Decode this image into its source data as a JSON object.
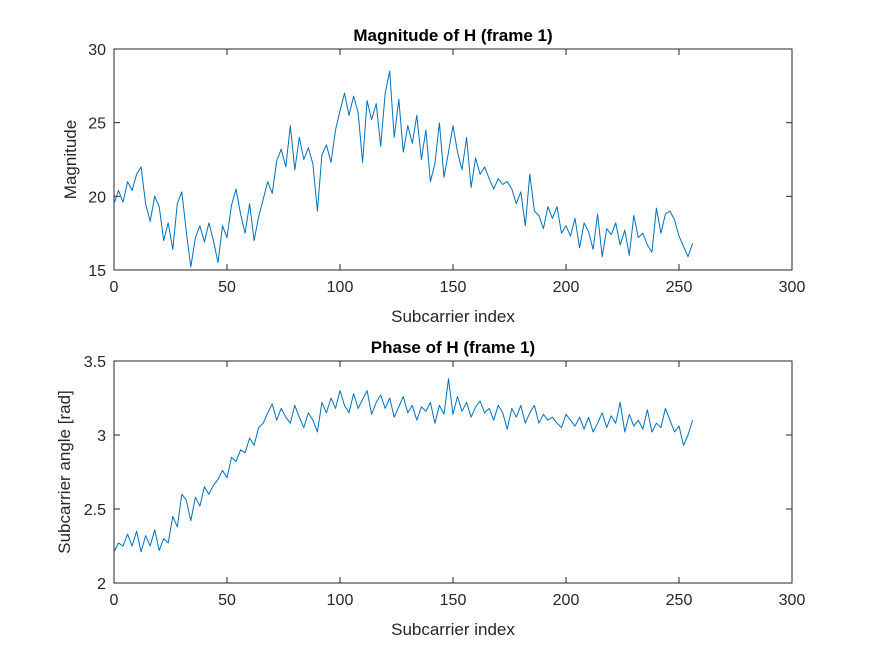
{
  "chart_data": [
    {
      "type": "line",
      "title": "Magnitude of H (frame 1)",
      "xlabel": "Subcarrier index",
      "ylabel": "Magnitude",
      "xlim": [
        0,
        300
      ],
      "ylim": [
        15,
        30
      ],
      "xticks": [
        0,
        50,
        100,
        150,
        200,
        250,
        300
      ],
      "yticks": [
        15,
        20,
        25,
        30
      ],
      "grid": false,
      "legend": "none",
      "color": "#0072BD",
      "series": [
        {
          "x": [
            0,
            2,
            4,
            6,
            8,
            10,
            12,
            14,
            16,
            18,
            20,
            22,
            24,
            26,
            28,
            30,
            32,
            34,
            36,
            38,
            40,
            42,
            44,
            46,
            48,
            50,
            52,
            54,
            56,
            58,
            60,
            62,
            64,
            66,
            68,
            70,
            72,
            74,
            76,
            78,
            80,
            82,
            84,
            86,
            88,
            90,
            92,
            94,
            96,
            98,
            100,
            102,
            104,
            106,
            108,
            110,
            112,
            114,
            116,
            118,
            120,
            122,
            124,
            126,
            128,
            130,
            132,
            134,
            136,
            138,
            140,
            142,
            144,
            146,
            148,
            150,
            152,
            154,
            156,
            158,
            160,
            162,
            164,
            166,
            168,
            170,
            172,
            174,
            176,
            178,
            180,
            182,
            184,
            186,
            188,
            190,
            192,
            194,
            196,
            198,
            200,
            202,
            204,
            206,
            208,
            210,
            212,
            214,
            216,
            218,
            220,
            222,
            224,
            226,
            228,
            230,
            232,
            234,
            236,
            238,
            240,
            242,
            244,
            246,
            248,
            250,
            252,
            254,
            256
          ],
          "values": [
            19.5,
            20.4,
            19.6,
            21.0,
            20.4,
            21.5,
            22.0,
            19.5,
            18.3,
            20.0,
            19.3,
            17.0,
            18.2,
            16.4,
            19.5,
            20.3,
            17.6,
            15.2,
            17.2,
            18.0,
            16.9,
            18.2,
            17.0,
            15.5,
            18.0,
            17.2,
            19.4,
            20.5,
            18.8,
            17.5,
            19.5,
            17.0,
            18.6,
            19.8,
            21.0,
            20.2,
            22.4,
            23.2,
            22.0,
            24.8,
            21.8,
            24.0,
            22.5,
            23.3,
            22.2,
            19.0,
            22.8,
            23.5,
            22.3,
            24.5,
            25.8,
            27.0,
            25.5,
            26.8,
            25.7,
            22.3,
            26.5,
            25.2,
            26.3,
            23.4,
            27.0,
            28.5,
            24.0,
            26.6,
            23.0,
            24.8,
            23.6,
            25.5,
            22.5,
            24.5,
            21.0,
            22.2,
            25.0,
            21.3,
            23.0,
            24.8,
            23.0,
            21.8,
            24.0,
            20.6,
            22.6,
            21.5,
            22.0,
            21.2,
            20.5,
            21.2,
            20.8,
            21.0,
            20.5,
            19.5,
            20.3,
            18.0,
            21.5,
            19.0,
            18.7,
            17.8,
            19.3,
            18.5,
            19.3,
            17.5,
            18.0,
            17.3,
            18.5,
            16.5,
            18.2,
            17.6,
            16.4,
            18.8,
            15.9,
            17.8,
            17.4,
            18.2,
            16.7,
            17.7,
            16.0,
            18.7,
            17.2,
            17.5,
            16.7,
            16.2,
            19.2,
            17.5,
            18.8,
            19.0,
            18.4,
            17.3,
            16.6,
            15.9,
            16.8
          ]
        }
      ]
    },
    {
      "type": "line",
      "title": "Phase of H (frame 1)",
      "xlabel": "Subcarrier index",
      "ylabel": "Subcarrier angle [rad]",
      "xlim": [
        0,
        300
      ],
      "ylim": [
        2,
        3.5
      ],
      "xticks": [
        0,
        50,
        100,
        150,
        200,
        250,
        300
      ],
      "yticks": [
        2,
        2.5,
        3,
        3.5
      ],
      "grid": false,
      "legend": "none",
      "color": "#0072BD",
      "series": [
        {
          "x": [
            0,
            2,
            4,
            6,
            8,
            10,
            12,
            14,
            16,
            18,
            20,
            22,
            24,
            26,
            28,
            30,
            32,
            34,
            36,
            38,
            40,
            42,
            44,
            46,
            48,
            50,
            52,
            54,
            56,
            58,
            60,
            62,
            64,
            66,
            68,
            70,
            72,
            74,
            76,
            78,
            80,
            82,
            84,
            86,
            88,
            90,
            92,
            94,
            96,
            98,
            100,
            102,
            104,
            106,
            108,
            110,
            112,
            114,
            116,
            118,
            120,
            122,
            124,
            126,
            128,
            130,
            132,
            134,
            136,
            138,
            140,
            142,
            144,
            146,
            148,
            150,
            152,
            154,
            156,
            158,
            160,
            162,
            164,
            166,
            168,
            170,
            172,
            174,
            176,
            178,
            180,
            182,
            184,
            186,
            188,
            190,
            192,
            194,
            196,
            198,
            200,
            202,
            204,
            206,
            208,
            210,
            212,
            214,
            216,
            218,
            220,
            222,
            224,
            226,
            228,
            230,
            232,
            234,
            236,
            238,
            240,
            242,
            244,
            246,
            248,
            250,
            252,
            254,
            256
          ],
          "values": [
            2.21,
            2.27,
            2.25,
            2.33,
            2.25,
            2.35,
            2.21,
            2.32,
            2.25,
            2.36,
            2.22,
            2.3,
            2.27,
            2.45,
            2.38,
            2.6,
            2.56,
            2.42,
            2.58,
            2.52,
            2.65,
            2.6,
            2.66,
            2.7,
            2.76,
            2.71,
            2.85,
            2.82,
            2.9,
            2.88,
            2.98,
            2.93,
            3.05,
            3.08,
            3.15,
            3.21,
            3.1,
            3.18,
            3.12,
            3.08,
            3.2,
            3.12,
            3.05,
            3.15,
            3.1,
            3.02,
            3.22,
            3.15,
            3.25,
            3.18,
            3.3,
            3.2,
            3.15,
            3.28,
            3.18,
            3.24,
            3.3,
            3.14,
            3.22,
            3.27,
            3.18,
            3.25,
            3.12,
            3.19,
            3.26,
            3.15,
            3.2,
            3.1,
            3.19,
            3.16,
            3.22,
            3.08,
            3.2,
            3.14,
            3.38,
            3.14,
            3.26,
            3.16,
            3.22,
            3.12,
            3.19,
            3.23,
            3.15,
            3.18,
            3.1,
            3.2,
            3.15,
            3.04,
            3.18,
            3.12,
            3.2,
            3.08,
            3.15,
            3.2,
            3.08,
            3.14,
            3.1,
            3.12,
            3.08,
            3.05,
            3.14,
            3.1,
            3.06,
            3.12,
            3.04,
            3.12,
            3.02,
            3.08,
            3.15,
            3.05,
            3.13,
            3.08,
            3.22,
            3.02,
            3.14,
            3.06,
            3.1,
            3.04,
            3.17,
            3.02,
            3.08,
            3.05,
            3.18,
            3.1,
            3.02,
            3.06,
            2.93,
            3.0,
            3.1
          ]
        }
      ]
    }
  ]
}
